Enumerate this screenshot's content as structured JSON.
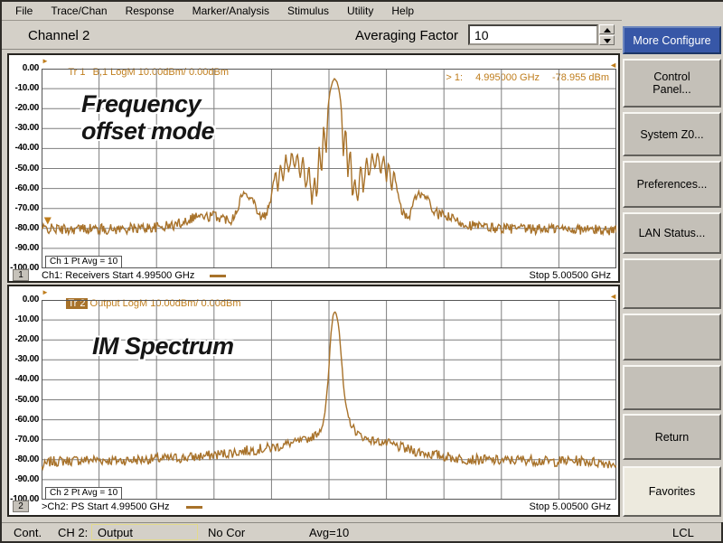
{
  "colors": {
    "chrome": "#d4d0c8",
    "trace": "#a8722a",
    "orange_text": "#bf7d1c",
    "grid_line": "#7d7d7d",
    "grid_frame": "#555555",
    "active_button_bg": "#3757a7",
    "annotation_color": "#151515",
    "status_output_border": "#e3da8c"
  },
  "menu": {
    "items": [
      "File",
      "Trace/Chan",
      "Response",
      "Marker/Analysis",
      "Stimulus",
      "Utility",
      "Help"
    ]
  },
  "channel_bar": {
    "label": "Channel 2",
    "averaging_label": "Averaging Factor",
    "averaging_value": "10"
  },
  "sidebar": {
    "buttons": [
      {
        "name": "more-configure-button",
        "label": "More Configure",
        "style": "active"
      },
      {
        "name": "control-panel-button",
        "label": "Control Panel...",
        "display": "Control\nPanel..."
      },
      {
        "name": "system-z0-button",
        "label": "System Z0..."
      },
      {
        "name": "preferences-button",
        "label": "Preferences..."
      },
      {
        "name": "lan-status-button",
        "label": "LAN Status..."
      },
      {
        "name": "blank-button-1",
        "label": ""
      },
      {
        "name": "blank-button-2",
        "label": ""
      },
      {
        "name": "blank-button-3",
        "label": ""
      },
      {
        "name": "return-button",
        "label": "Return"
      },
      {
        "name": "favorites-button",
        "label": "Favorites",
        "style": "light"
      }
    ]
  },
  "status_bar": {
    "sweep_mode": "Cont.",
    "channel": "CH 2:",
    "measurement": "Output",
    "correction": "No Cor",
    "averaging": "Avg=10",
    "remote": "LCL"
  },
  "chart_data": [
    {
      "type": "line",
      "trace_label": {
        "prefix": "Tr 1",
        "rest": "  B,1 LogM 10.00dBm/ 0.00dBm",
        "selected": false
      },
      "marker": {
        "id": "> 1:",
        "x_text": "4.995000 GHz",
        "y_text": "-78.955 dBm",
        "position_frac": 0.006,
        "level_dbm": -78.955
      },
      "annotation": "Frequency\noffset mode",
      "avg_text": "Ch 1 Pt Avg = 10",
      "footer": {
        "badge": "1",
        "start_label": "Ch1: Receivers Start  4.99500 GHz",
        "stop_label": "Stop  5.00500 GHz"
      },
      "y_axis": {
        "unit": "dBm",
        "max": 0,
        "min": -100,
        "ticks": [
          "0.00",
          "-10.00",
          "-20.00",
          "-30.00",
          "-40.00",
          "-50.00",
          "-60.00",
          "-70.00",
          "-80.00",
          "-90.00",
          "-100.00"
        ]
      },
      "x_axis": {
        "start": "4.99500 GHz",
        "stop": "5.00500 GHz",
        "divisions": 10
      },
      "noise_floor_dbm": -80,
      "peak": {
        "frac": 0.51,
        "level_dbm": -5
      },
      "noise_seed": 42,
      "samples": 640,
      "envelope": [
        [
          0,
          -80
        ],
        [
          0.04,
          -80.5
        ],
        [
          0.08,
          -80
        ],
        [
          0.12,
          -80.5
        ],
        [
          0.16,
          -80
        ],
        [
          0.2,
          -79.5
        ],
        [
          0.23,
          -78.5
        ],
        [
          0.255,
          -75.5
        ],
        [
          0.27,
          -73.5
        ],
        [
          0.285,
          -74.5
        ],
        [
          0.3,
          -73.5
        ],
        [
          0.315,
          -75
        ],
        [
          0.33,
          -75.5
        ],
        [
          0.341,
          -70
        ],
        [
          0.347,
          -64
        ],
        [
          0.353,
          -62
        ],
        [
          0.358,
          -65
        ],
        [
          0.363,
          -62.5
        ],
        [
          0.369,
          -66
        ],
        [
          0.375,
          -71
        ],
        [
          0.383,
          -75
        ],
        [
          0.391,
          -73
        ],
        [
          0.398,
          -67
        ],
        [
          0.403,
          -58
        ],
        [
          0.407,
          -50
        ],
        [
          0.411,
          -61
        ],
        [
          0.416,
          -46.5
        ],
        [
          0.42,
          -57
        ],
        [
          0.425,
          -43
        ],
        [
          0.43,
          -53
        ],
        [
          0.435,
          -41.5
        ],
        [
          0.44,
          -50
        ],
        [
          0.445,
          -42.5
        ],
        [
          0.45,
          -55
        ],
        [
          0.455,
          -44
        ],
        [
          0.46,
          -62
        ],
        [
          0.465,
          -47
        ],
        [
          0.47,
          -68
        ],
        [
          0.475,
          -55
        ],
        [
          0.479,
          -65
        ],
        [
          0.483,
          -38
        ],
        [
          0.487,
          -55
        ],
        [
          0.491,
          -27
        ],
        [
          0.495,
          -44
        ],
        [
          0.4985,
          -19
        ],
        [
          0.502,
          -11
        ],
        [
          0.506,
          -6.5
        ],
        [
          0.51,
          -5
        ],
        [
          0.514,
          -6.5
        ],
        [
          0.518,
          -11
        ],
        [
          0.5215,
          -19
        ],
        [
          0.525,
          -44
        ],
        [
          0.529,
          -27
        ],
        [
          0.533,
          -55
        ],
        [
          0.537,
          -38
        ],
        [
          0.541,
          -65
        ],
        [
          0.545,
          -55
        ],
        [
          0.55,
          -68
        ],
        [
          0.555,
          -47
        ],
        [
          0.56,
          -62
        ],
        [
          0.565,
          -44
        ],
        [
          0.57,
          -55
        ],
        [
          0.575,
          -42.5
        ],
        [
          0.58,
          -50
        ],
        [
          0.585,
          -41.5
        ],
        [
          0.59,
          -53
        ],
        [
          0.595,
          -43
        ],
        [
          0.6,
          -57
        ],
        [
          0.604,
          -46.5
        ],
        [
          0.609,
          -61
        ],
        [
          0.613,
          -50
        ],
        [
          0.617,
          -58
        ],
        [
          0.622,
          -67
        ],
        [
          0.629,
          -73
        ],
        [
          0.637,
          -75
        ],
        [
          0.643,
          -71
        ],
        [
          0.648,
          -66
        ],
        [
          0.653,
          -63.5
        ],
        [
          0.658,
          -62.5
        ],
        [
          0.663,
          -65
        ],
        [
          0.668,
          -63
        ],
        [
          0.674,
          -67
        ],
        [
          0.68,
          -71
        ],
        [
          0.69,
          -73
        ],
        [
          0.705,
          -74
        ],
        [
          0.72,
          -76
        ],
        [
          0.74,
          -78
        ],
        [
          0.77,
          -79.5
        ],
        [
          0.81,
          -80
        ],
        [
          0.85,
          -80.5
        ],
        [
          0.89,
          -80
        ],
        [
          0.94,
          -80.5
        ],
        [
          1,
          -81
        ]
      ]
    },
    {
      "type": "line",
      "trace_label": {
        "prefix": "Tr 2",
        "rest": " Output LogM 10.00dBm/ 0.00dBm",
        "selected": true
      },
      "marker": null,
      "annotation": "IM Spectrum",
      "avg_text": "Ch 2 Pt Avg = 10",
      "footer": {
        "badge": "2",
        "start_label": ">Ch2: PS Start  4.99500 GHz",
        "stop_label": "Stop  5.00500 GHz"
      },
      "y_axis": {
        "unit": "dBm",
        "max": 0,
        "min": -100,
        "ticks": [
          "0.00",
          "-10.00",
          "-20.00",
          "-30.00",
          "-40.00",
          "-50.00",
          "-60.00",
          "-70.00",
          "-80.00",
          "-90.00",
          "-100.00"
        ]
      },
      "x_axis": {
        "start": "4.99500 GHz",
        "stop": "5.00500 GHz",
        "divisions": 10
      },
      "noise_floor_dbm": -80,
      "peak": {
        "frac": 0.51,
        "level_dbm": -5.5
      },
      "noise_seed": 7,
      "samples": 560,
      "envelope": [
        [
          0,
          -84
        ],
        [
          0.015,
          -81
        ],
        [
          0.05,
          -80.5
        ],
        [
          0.09,
          -80
        ],
        [
          0.13,
          -80.5
        ],
        [
          0.17,
          -80
        ],
        [
          0.21,
          -79.5
        ],
        [
          0.25,
          -79
        ],
        [
          0.29,
          -78
        ],
        [
          0.33,
          -76.5
        ],
        [
          0.37,
          -75
        ],
        [
          0.4,
          -74
        ],
        [
          0.425,
          -72.5
        ],
        [
          0.445,
          -71
        ],
        [
          0.46,
          -70
        ],
        [
          0.472,
          -68.5
        ],
        [
          0.481,
          -66.5
        ],
        [
          0.488,
          -63
        ],
        [
          0.493,
          -57
        ],
        [
          0.4965,
          -47
        ],
        [
          0.5,
          -34
        ],
        [
          0.503,
          -18
        ],
        [
          0.507,
          -8
        ],
        [
          0.51,
          -5.5
        ],
        [
          0.513,
          -7
        ],
        [
          0.517,
          -13
        ],
        [
          0.521,
          -27
        ],
        [
          0.525,
          -42
        ],
        [
          0.529,
          -53
        ],
        [
          0.534,
          -59
        ],
        [
          0.54,
          -63
        ],
        [
          0.547,
          -66
        ],
        [
          0.555,
          -68
        ],
        [
          0.565,
          -69.5
        ],
        [
          0.578,
          -70.5
        ],
        [
          0.595,
          -71.5
        ],
        [
          0.615,
          -73
        ],
        [
          0.638,
          -75
        ],
        [
          0.663,
          -76.5
        ],
        [
          0.693,
          -78
        ],
        [
          0.728,
          -79.5
        ],
        [
          0.763,
          -80
        ],
        [
          0.803,
          -80.5
        ],
        [
          0.843,
          -80
        ],
        [
          0.883,
          -81
        ],
        [
          0.928,
          -80.5
        ],
        [
          1,
          -82
        ]
      ]
    }
  ]
}
